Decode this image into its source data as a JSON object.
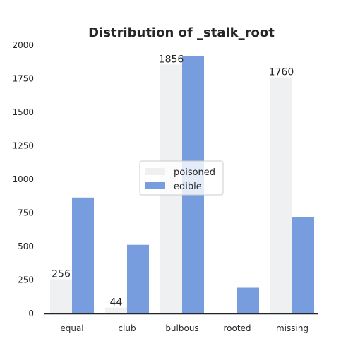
{
  "chart_data": {
    "type": "bar",
    "title": "Distribution of _stalk_root",
    "xlabel": "",
    "ylabel": "",
    "categories": [
      "equal",
      "club",
      "bulbous",
      "rooted",
      "missing"
    ],
    "series": [
      {
        "name": "poisoned",
        "values": [
          256,
          44,
          1856,
          0,
          1760
        ],
        "color": "#eef0f2"
      },
      {
        "name": "edible",
        "values": [
          864,
          512,
          1920,
          192,
          720
        ],
        "color": "#779ddf"
      }
    ],
    "data_labels": [
      {
        "series": "poisoned",
        "category": "equal",
        "text": "256"
      },
      {
        "series": "poisoned",
        "category": "club",
        "text": "44"
      },
      {
        "series": "poisoned",
        "category": "bulbous",
        "text": "1856"
      },
      {
        "series": "poisoned",
        "category": "missing",
        "text": "1760"
      }
    ],
    "ylim": [
      0,
      2000
    ],
    "yticks": [
      0,
      250,
      500,
      750,
      1000,
      1250,
      1500,
      1750,
      2000
    ],
    "grid": false,
    "legend": "center"
  }
}
